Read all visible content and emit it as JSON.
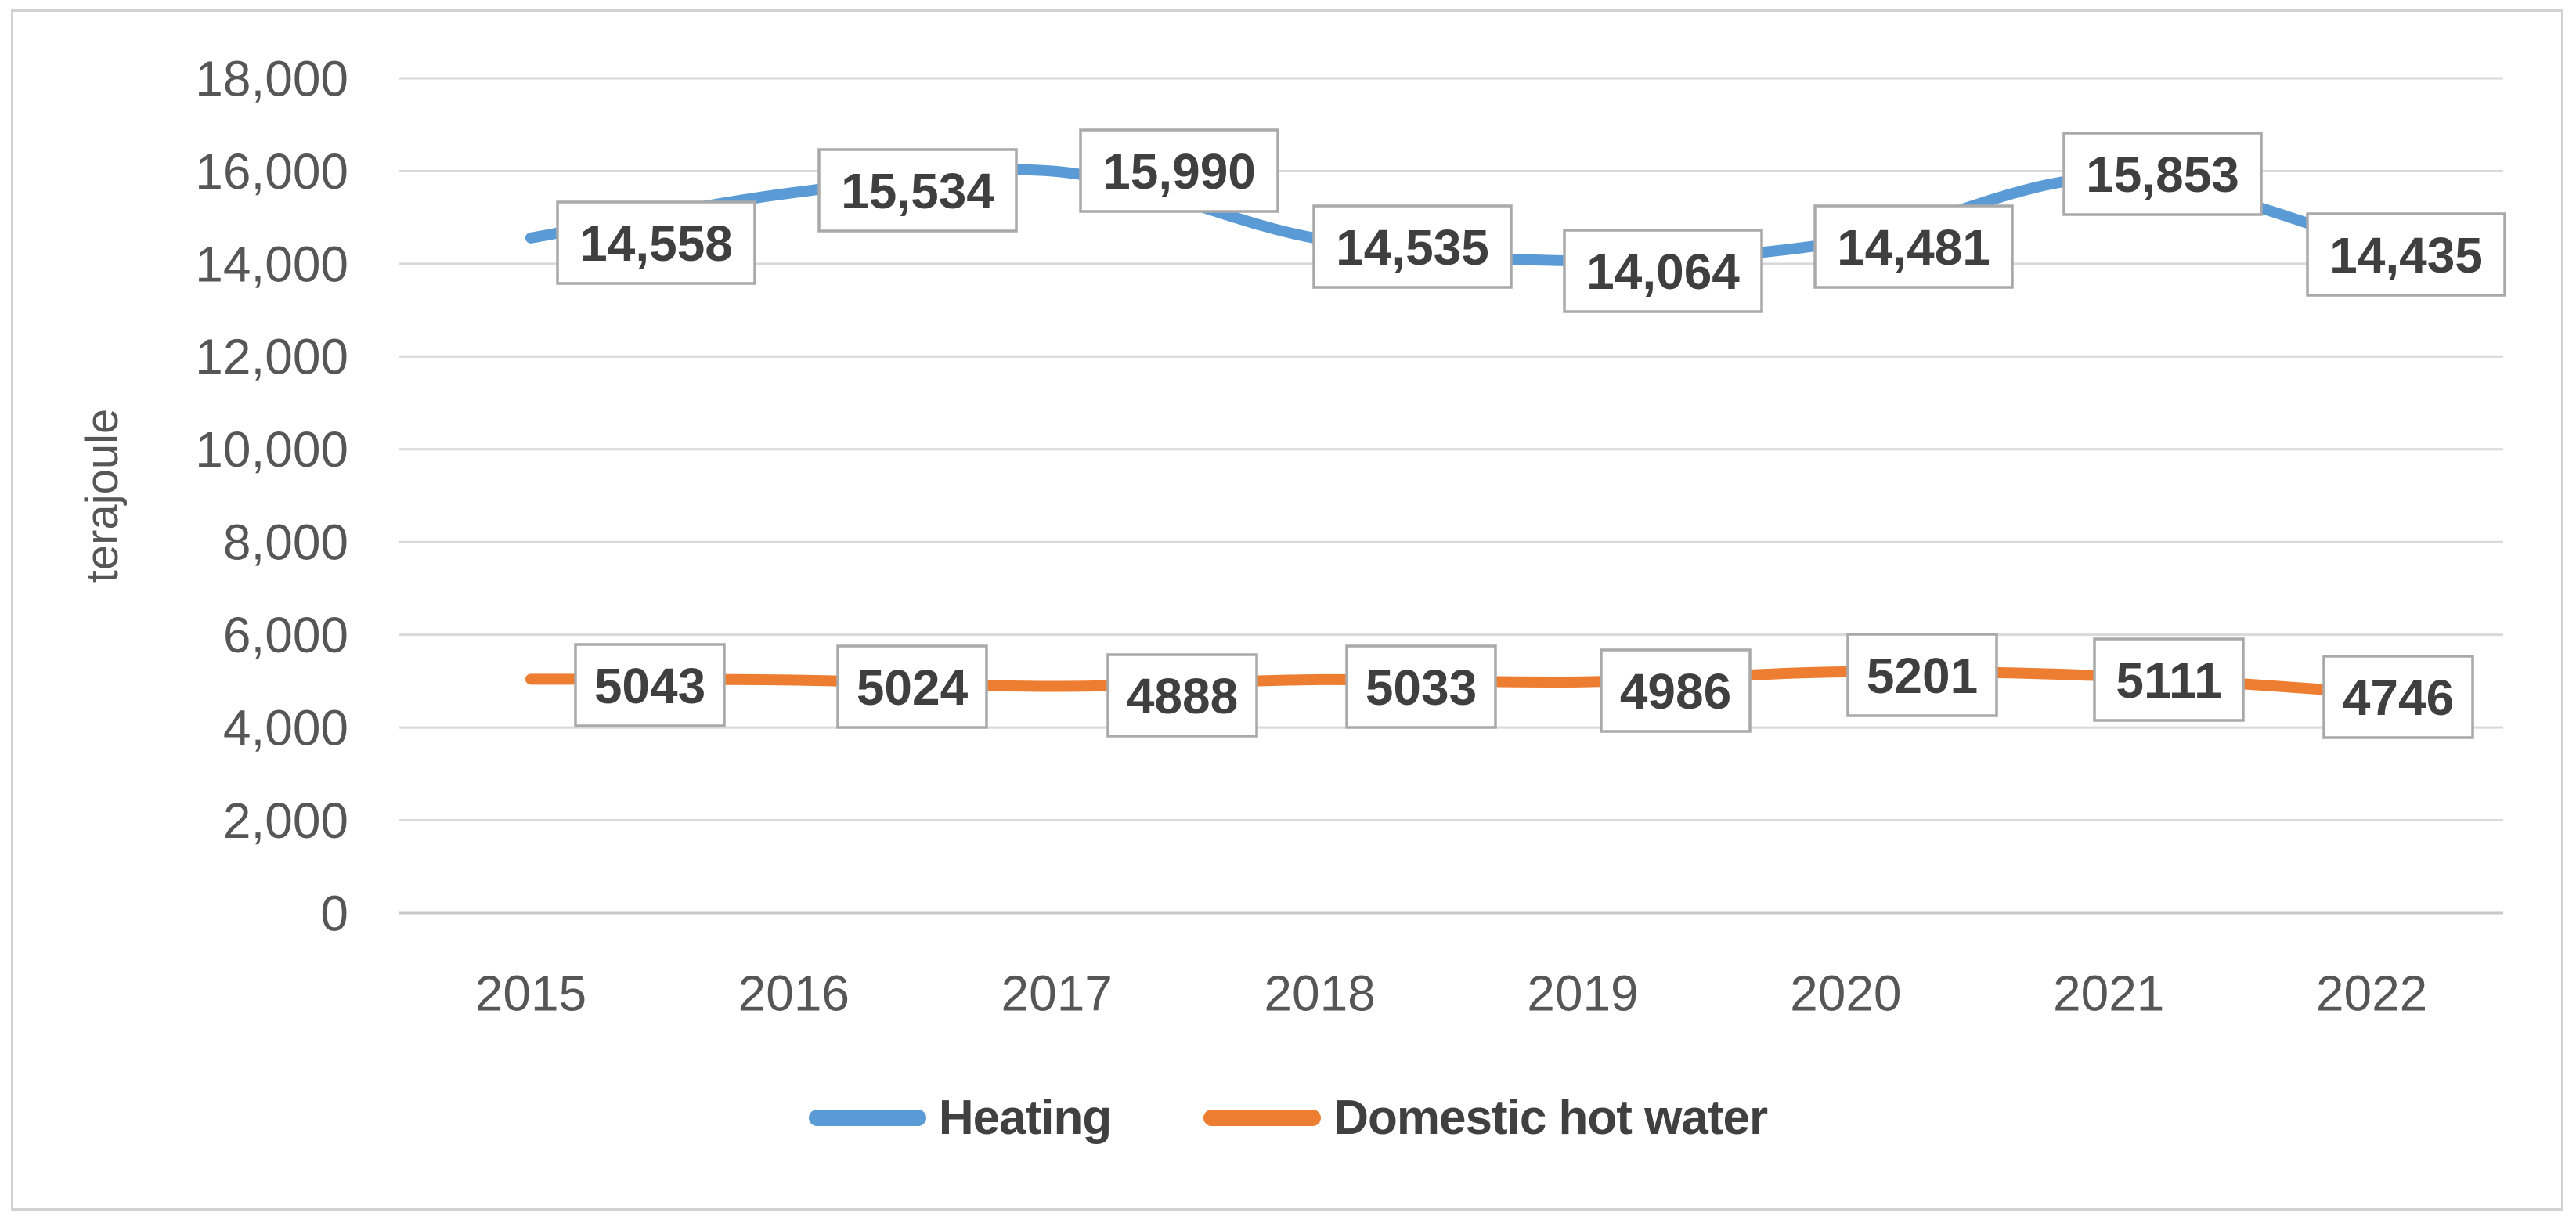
{
  "chart_data": {
    "type": "line",
    "title": "",
    "categories": [
      "2015",
      "2016",
      "2017",
      "2018",
      "2019",
      "2020",
      "2021",
      "2022"
    ],
    "series": [
      {
        "name": "Heating",
        "color": "#5B9BD5",
        "values": [
          14558,
          15534,
          15990,
          14535,
          14064,
          14481,
          15853,
          14435
        ],
        "data_labels": [
          "14,558",
          "15,534",
          "15,990",
          "14,535",
          "14,064",
          "14,481",
          "15,853",
          "14,435"
        ]
      },
      {
        "name": "Domestic hot water",
        "color": "#ED7D31",
        "values": [
          5043,
          5024,
          4888,
          5033,
          4986,
          5201,
          5111,
          4746
        ],
        "data_labels": [
          "5043",
          "5024",
          "4888",
          "5033",
          "4986",
          "5201",
          "5111",
          "4746"
        ]
      }
    ],
    "xlabel": "",
    "ylabel": "terajoule",
    "ylim": [
      0,
      18000
    ],
    "ytick_step": 2000,
    "ytick_labels": [
      "0",
      "2,000",
      "4,000",
      "6,000",
      "8,000",
      "10,000",
      "12,000",
      "14,000",
      "16,000",
      "18,000"
    ],
    "grid": true,
    "legend_position": "bottom",
    "smoothed_lines": true,
    "colors": {
      "gridline": "#d9d9d9",
      "axis_line": "#c8c8c8",
      "tick_text": "#565656",
      "data_label_text": "#3f3f3f",
      "data_label_border": "#a9a9a9",
      "data_label_fill": "#ffffff",
      "chart_border": "#d2d2d2"
    }
  },
  "legend": {
    "items": [
      {
        "label": "Heating",
        "color": "#5B9BD5"
      },
      {
        "label": "Domestic hot water",
        "color": "#ED7D31"
      }
    ]
  }
}
